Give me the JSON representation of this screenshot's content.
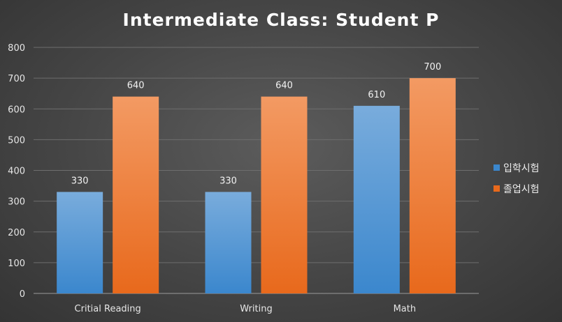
{
  "chart_data": {
    "type": "bar",
    "title": "Intermediate Class: Student P",
    "xlabel": "",
    "ylabel": "",
    "categories": [
      "Critial Reading",
      "Writing",
      "Math"
    ],
    "series": [
      {
        "name": "입학시험",
        "values": [
          330,
          330,
          610
        ],
        "color_top": "#79acdc",
        "color_bottom": "#3b87cd"
      },
      {
        "name": "졸업시험",
        "values": [
          640,
          640,
          700
        ],
        "color_top": "#f39a63",
        "color_bottom": "#e8691c"
      }
    ],
    "ylim": [
      0,
      800
    ],
    "yticks": [
      0,
      100,
      200,
      300,
      400,
      500,
      600,
      700,
      800
    ],
    "grid": true,
    "legend_position": "right",
    "data_labels": true
  }
}
